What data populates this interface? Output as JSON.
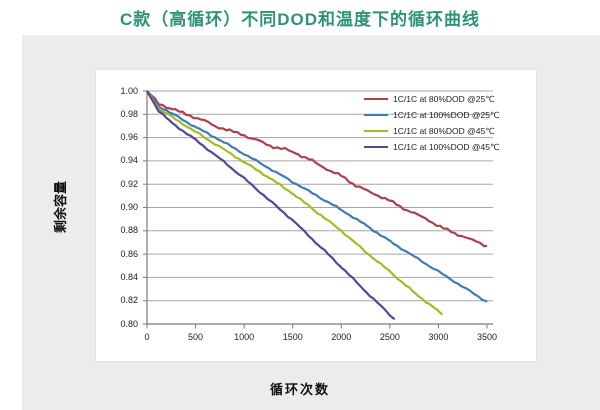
{
  "page": {
    "title": "C款（高循环）不同DOD和温度下的循环曲线",
    "title_color": "#2e9377",
    "panel_bg": "#ececec"
  },
  "chart_data": {
    "type": "line",
    "title": "C款（高循环）不同DOD和温度下的循环曲线",
    "xlabel": "循环次数",
    "ylabel": "剩余容量",
    "xlim": [
      0,
      3500
    ],
    "ylim": [
      0.8,
      1.0
    ],
    "x_ticks": [
      0,
      500,
      1000,
      1500,
      2000,
      2500,
      3000,
      3500
    ],
    "y_ticks": [
      "1.00",
      "0.98",
      "0.96",
      "0.94",
      "0.92",
      "0.90",
      "0.88",
      "0.86",
      "0.84",
      "0.82",
      "0.80"
    ],
    "grid": "horizontal",
    "legend_position": "top-right",
    "axis_color": "#7a7a7a",
    "grid_color": "#a6a6a6",
    "series": [
      {
        "name": "1C/1C at 80%DOD @25℃",
        "color": "#ae404c",
        "points": [
          [
            0,
            1.0
          ],
          [
            120,
            0.989
          ],
          [
            250,
            0.985
          ],
          [
            400,
            0.98
          ],
          [
            550,
            0.976
          ],
          [
            700,
            0.97
          ],
          [
            850,
            0.966
          ],
          [
            1000,
            0.962
          ],
          [
            1150,
            0.957
          ],
          [
            1300,
            0.952
          ],
          [
            1420,
            0.95
          ],
          [
            1550,
            0.946
          ],
          [
            1700,
            0.94
          ],
          [
            1850,
            0.933
          ],
          [
            2000,
            0.927
          ],
          [
            2150,
            0.919
          ],
          [
            2300,
            0.913
          ],
          [
            2450,
            0.908
          ],
          [
            2600,
            0.901
          ],
          [
            2750,
            0.895
          ],
          [
            2900,
            0.889
          ],
          [
            3050,
            0.882
          ],
          [
            3200,
            0.877
          ],
          [
            3350,
            0.872
          ],
          [
            3500,
            0.867
          ]
        ]
      },
      {
        "name": "1C/1C at 100%DOD @25℃",
        "color": "#3f7cb5",
        "points": [
          [
            0,
            1.0
          ],
          [
            120,
            0.987
          ],
          [
            250,
            0.981
          ],
          [
            500,
            0.969
          ],
          [
            750,
            0.958
          ],
          [
            1000,
            0.946
          ],
          [
            1250,
            0.934
          ],
          [
            1500,
            0.922
          ],
          [
            1750,
            0.91
          ],
          [
            2000,
            0.898
          ],
          [
            2250,
            0.885
          ],
          [
            2500,
            0.871
          ],
          [
            2750,
            0.858
          ],
          [
            3000,
            0.845
          ],
          [
            3250,
            0.832
          ],
          [
            3500,
            0.819
          ]
        ]
      },
      {
        "name": "1C/1C at 80%DOD @45℃",
        "color": "#a6ba26",
        "points": [
          [
            0,
            1.0
          ],
          [
            120,
            0.985
          ],
          [
            250,
            0.978
          ],
          [
            500,
            0.965
          ],
          [
            750,
            0.952
          ],
          [
            1000,
            0.939
          ],
          [
            1250,
            0.926
          ],
          [
            1500,
            0.912
          ],
          [
            1750,
            0.896
          ],
          [
            2000,
            0.88
          ],
          [
            2250,
            0.862
          ],
          [
            2500,
            0.845
          ],
          [
            2750,
            0.827
          ],
          [
            3000,
            0.811
          ],
          [
            3040,
            0.808
          ]
        ]
      },
      {
        "name": "1C/1C at 100%DOD @45℃",
        "color": "#5b4397",
        "points": [
          [
            0,
            1.0
          ],
          [
            120,
            0.983
          ],
          [
            250,
            0.973
          ],
          [
            500,
            0.958
          ],
          [
            750,
            0.942
          ],
          [
            1000,
            0.925
          ],
          [
            1250,
            0.907
          ],
          [
            1500,
            0.889
          ],
          [
            1750,
            0.869
          ],
          [
            2000,
            0.849
          ],
          [
            2250,
            0.828
          ],
          [
            2500,
            0.808
          ],
          [
            2550,
            0.804
          ]
        ]
      }
    ]
  }
}
